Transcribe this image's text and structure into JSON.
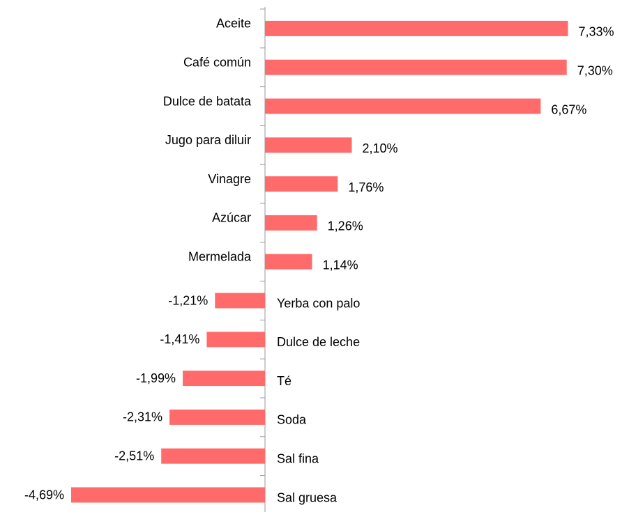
{
  "chart_data": {
    "type": "bar",
    "orientation": "horizontal",
    "color": "#ff6b6b",
    "categories": [
      "Aceite",
      "Café común",
      "Dulce de batata",
      "Jugo para diluir",
      "Vinagre",
      "Azúcar",
      "Mermelada",
      "Yerba con palo",
      "Dulce de leche",
      "Té",
      "Soda",
      "Sal fina",
      "Sal gruesa"
    ],
    "values": [
      7.33,
      7.3,
      6.67,
      2.1,
      1.76,
      1.26,
      1.14,
      -1.21,
      -1.41,
      -1.99,
      -2.31,
      -2.51,
      -4.69
    ],
    "value_labels": [
      "7,33%",
      "7,30%",
      "6,67%",
      "2,10%",
      "1,76%",
      "1,26%",
      "1,14%",
      "-1,21%",
      "-1,41%",
      "-1,99%",
      "-2,31%",
      "-2,51%",
      "-4,69%"
    ]
  }
}
